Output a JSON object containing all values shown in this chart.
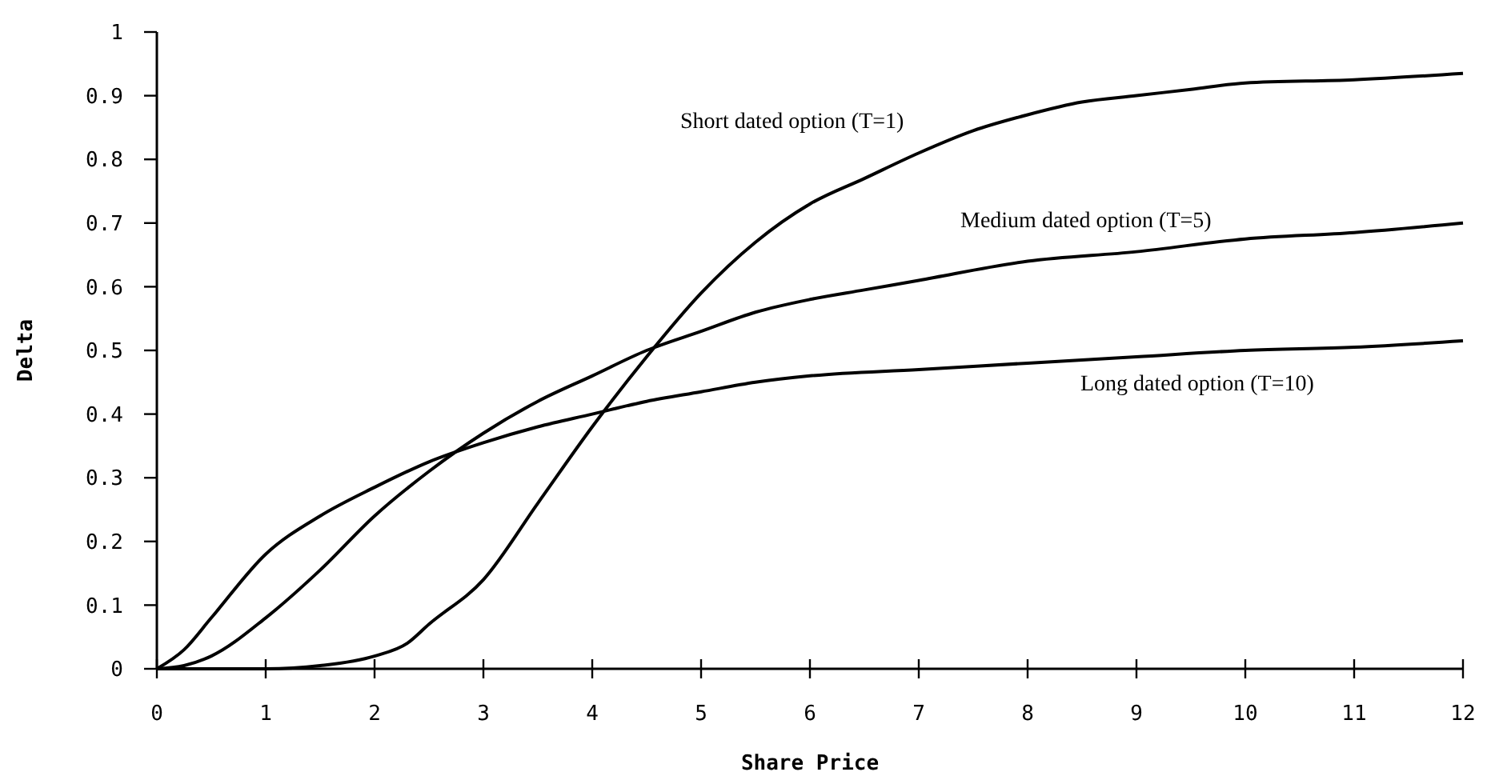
{
  "chart_data": {
    "type": "line",
    "xlabel": "Share Price",
    "ylabel": "Delta",
    "xlim": [
      0,
      12
    ],
    "ylim": [
      0,
      1
    ],
    "xticks": [
      0,
      1,
      2,
      3,
      4,
      5,
      6,
      7,
      8,
      9,
      10,
      11,
      12
    ],
    "yticks": [
      0,
      0.1,
      0.2,
      0.3,
      0.4,
      0.5,
      0.6,
      0.7,
      0.8,
      0.9,
      1
    ],
    "grid": false,
    "marker": "none",
    "line_style": "solid",
    "series": [
      {
        "name": "Short dated option (T=1)",
        "color": "#000000",
        "x": [
          0,
          1,
          1.5,
          2,
          2.3,
          2.5,
          3,
          3.5,
          4,
          4.5,
          5,
          5.5,
          6,
          6.5,
          7,
          7.5,
          8,
          8.5,
          9,
          9.5,
          10,
          11,
          12
        ],
        "values": [
          0,
          0,
          0.005,
          0.02,
          0.04,
          0.07,
          0.14,
          0.26,
          0.38,
          0.49,
          0.59,
          0.67,
          0.73,
          0.77,
          0.81,
          0.845,
          0.87,
          0.89,
          0.9,
          0.91,
          0.92,
          0.925,
          0.935
        ]
      },
      {
        "name": "Medium dated option (T=5)",
        "color": "#000000",
        "x": [
          0,
          0.25,
          0.5,
          1,
          1.5,
          2,
          2.5,
          3,
          3.5,
          4,
          4.5,
          5,
          5.5,
          6,
          6.5,
          7,
          8,
          9,
          10,
          11,
          12
        ],
        "values": [
          0,
          0.005,
          0.02,
          0.08,
          0.155,
          0.24,
          0.31,
          0.37,
          0.42,
          0.46,
          0.5,
          0.53,
          0.56,
          0.58,
          0.595,
          0.61,
          0.64,
          0.655,
          0.675,
          0.685,
          0.7
        ]
      },
      {
        "name": "Long dated option (T=10)",
        "color": "#000000",
        "x": [
          0,
          0.25,
          0.5,
          1,
          1.5,
          2,
          2.5,
          3,
          3.5,
          4,
          4.5,
          5,
          5.5,
          6,
          7,
          8,
          9,
          10,
          11,
          12
        ],
        "values": [
          0,
          0.03,
          0.08,
          0.18,
          0.24,
          0.285,
          0.325,
          0.355,
          0.38,
          0.4,
          0.42,
          0.435,
          0.45,
          0.46,
          0.47,
          0.48,
          0.49,
          0.5,
          0.505,
          0.515
        ]
      }
    ]
  }
}
